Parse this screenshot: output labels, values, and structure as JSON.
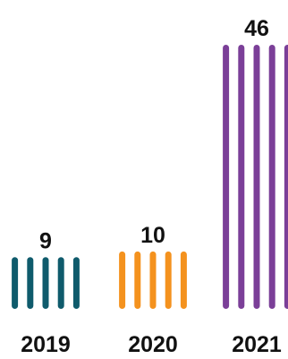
{
  "chart_data": {
    "type": "bar",
    "categories": [
      "2019",
      "2020",
      "2021"
    ],
    "values": [
      9,
      10,
      46
    ],
    "colors": [
      "#0f5b6c",
      "#f4921e",
      "#7b3f98"
    ],
    "title": "",
    "xlabel": "",
    "ylabel": "",
    "ylim": [
      0,
      46
    ],
    "grid": false,
    "legend": "none"
  }
}
